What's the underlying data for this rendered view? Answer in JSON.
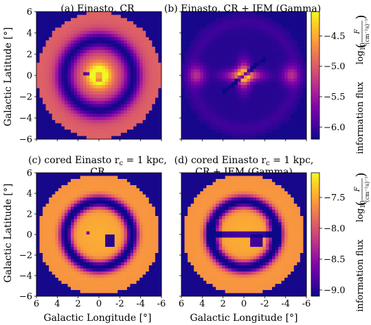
{
  "figure": {
    "ylabel": "Galactic Latitude [°]",
    "xlabel": "Galactic Longitude [°]",
    "colorbar_label_prefix": "information flux",
    "colorbar_label_log": "log",
    "colorbar_label_log_sub": "10",
    "colorbar_label_F": "F",
    "colorbar_label_units": "(cm⁻²s)⁻¹"
  },
  "chart_data": [
    {
      "type": "heatmap",
      "panel": "a",
      "title": "(a) Einasto, CR",
      "xlim": [
        6,
        -6
      ],
      "ylim": [
        -6,
        6
      ],
      "xticks": [
        "6",
        "4",
        "2",
        "0",
        "-2",
        "-4",
        "-6"
      ],
      "yticks": [
        "6",
        "4",
        "2",
        "0",
        "−2",
        "−4",
        "−6"
      ],
      "structure": {
        "core_peak": -4.3,
        "ring_radius": 3.3,
        "ring_value": -5.9,
        "outer_disk_radius": 5.9,
        "outer_value": -5.2
      },
      "colorbar": "top"
    },
    {
      "type": "heatmap",
      "panel": "b",
      "title": "(b) Einasto, CR + IEM (Gamma)",
      "xlim": [
        6,
        -6
      ],
      "ylim": [
        -6,
        6
      ],
      "xticks": [
        "6",
        "4",
        "2",
        "0",
        "-2",
        "-4",
        "-6"
      ],
      "yticks": [
        "6",
        "4",
        "2",
        "0",
        "−2",
        "−4",
        "−6"
      ],
      "structure": {
        "core_peak": -4.4,
        "lobe_positions_deg": [
          -4.5,
          4.5
        ],
        "lobe_value": -5.1,
        "background": -6.0
      },
      "colorbar": "top"
    },
    {
      "type": "heatmap",
      "panel": "c",
      "title_line1": "(c) cored Einasto r",
      "title_sub": "c",
      "title_rest": " = 1 kpc,",
      "title_line2": "CR",
      "xlim": [
        6,
        -6
      ],
      "ylim": [
        -6,
        6
      ],
      "xticks": [
        "6",
        "4",
        "2",
        "0",
        "-2",
        "-4",
        "-6"
      ],
      "yticks": [
        "6",
        "4",
        "2",
        "0",
        "−2",
        "−4",
        "−6"
      ],
      "structure": {
        "inner_value": -7.7,
        "ring_radius": 3.2,
        "ring_value": -9.0,
        "outer_disk_radius": 5.8,
        "outer_value": -7.5
      },
      "colorbar": "bottom"
    },
    {
      "type": "heatmap",
      "panel": "d",
      "title_line1": "(d) cored Einasto r",
      "title_sub": "c",
      "title_rest": " = 1 kpc,",
      "title_line2": "CR + IEM (Gamma)",
      "xlim": [
        6,
        -6
      ],
      "ylim": [
        -6,
        6
      ],
      "xticks": [
        "6",
        "4",
        "2",
        "0",
        "-2",
        "-4",
        "-6"
      ],
      "yticks": [
        "6",
        "4",
        "2",
        "0",
        "−2",
        "−4",
        "−6"
      ],
      "structure": {
        "inner_value": -7.7,
        "ring_radius": 3.2,
        "ring_value": -9.0,
        "outer_disk_radius": 5.8,
        "outer_value": -7.5
      },
      "colorbar": "bottom"
    },
    {
      "type": "heatmap",
      "role": "colorbar",
      "panel": "top-colorbar",
      "range": [
        -6.2,
        -4.1
      ],
      "ticks": [
        "−4.5",
        "−5.0",
        "−5.5",
        "−6.0"
      ],
      "tick_values": [
        -4.5,
        -5.0,
        -5.5,
        -6.0
      ],
      "colormap": "plasma"
    },
    {
      "type": "heatmap",
      "role": "colorbar",
      "panel": "bottom-colorbar",
      "range": [
        -9.1,
        -7.1
      ],
      "ticks": [
        "−7.5",
        "−8.0",
        "−8.5",
        "−9.0"
      ],
      "tick_values": [
        -7.5,
        -8.0,
        -8.5,
        -9.0
      ],
      "colormap": "plasma"
    }
  ]
}
